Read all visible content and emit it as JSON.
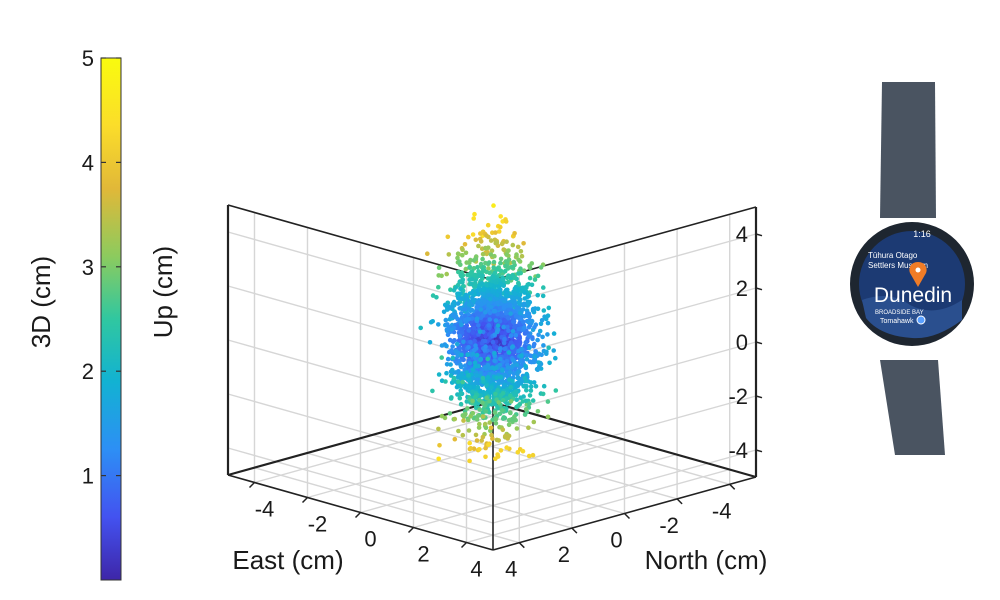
{
  "chart_data": {
    "type": "scatter",
    "dimensions": 3,
    "title": "",
    "xlabel": "East (cm)",
    "ylabel": "North (cm)",
    "zlabel": "Up (cm)",
    "xlim": [
      -5,
      5
    ],
    "ylim": [
      -5,
      5
    ],
    "zlim": [
      -5,
      5
    ],
    "xticks": [
      "-4",
      "-2",
      "0",
      "2",
      "4"
    ],
    "yticks": [
      "-4",
      "-2",
      "0",
      "2",
      "4"
    ],
    "zticks": [
      "4",
      "2",
      "0",
      "-2",
      "-4"
    ],
    "grid": true,
    "color_by": "3D error",
    "colormap": "parula",
    "colorbar": {
      "label": "3D (cm)",
      "range": [
        0,
        5
      ],
      "ticks": [
        "1",
        "2",
        "3",
        "4",
        "5"
      ],
      "colors": [
        "#3e26a8",
        "#4352f0",
        "#2d8ff5",
        "#12b2d2",
        "#30c7a0",
        "#8ccb5e",
        "#e1b838",
        "#fbdd2a",
        "#f9fb0e"
      ]
    },
    "point_cloud": {
      "center": [
        0,
        0,
        0
      ],
      "std_east_cm": 0.55,
      "std_north_cm": 0.55,
      "std_up_cm": 1.55,
      "up_range": [
        -4.2,
        4.4
      ]
    },
    "series": [
      {
        "points": [
          [
            0.2,
            -0.3,
            0.1
          ],
          [
            -0.4,
            0.5,
            -0.6
          ],
          [
            0.6,
            0.2,
            1.2
          ],
          [
            -0.1,
            -0.7,
            -1.4
          ],
          [
            0.3,
            0.4,
            2.1
          ],
          [
            -0.5,
            -0.2,
            -2.3
          ],
          [
            0.1,
            0.1,
            3.4
          ],
          [
            -0.2,
            0.3,
            -3.5
          ],
          [
            0.8,
            -0.5,
            0.7
          ],
          [
            -0.7,
            0.6,
            1.8
          ],
          [
            0.4,
            -0.1,
            -0.9
          ],
          [
            0.0,
            0.8,
            4.1
          ],
          [
            -0.3,
            -0.4,
            -4.0
          ],
          [
            0.5,
            0.6,
            2.9
          ],
          [
            -0.6,
            0.1,
            -2.8
          ]
        ]
      }
    ]
  },
  "watch": {
    "screen_time": "1:16",
    "place_lines": [
      "Tūhura Otago",
      "Settlers Museum"
    ],
    "bay_label": "BROADSIDE BAY",
    "street_label": "Tomahawk",
    "city_label": "Dunedin",
    "colors": {
      "strap": "#4a5461",
      "bezel": "#1e2630",
      "screen": "#1c3a73",
      "pin": "#f07c27"
    }
  }
}
